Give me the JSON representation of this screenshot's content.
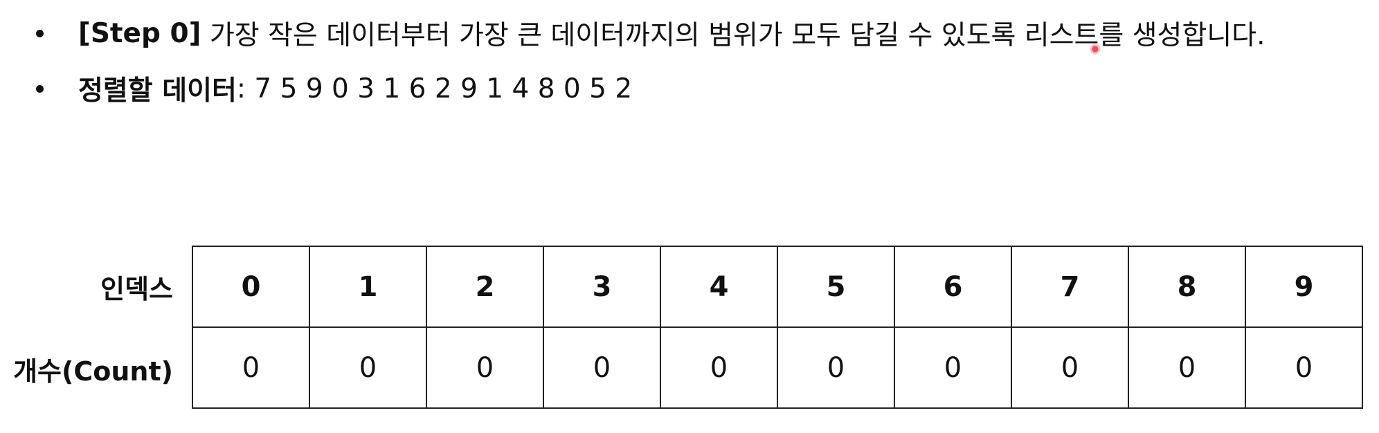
{
  "bullets": [
    {
      "bold": "[Step 0]",
      "text": "가장 작은 데이터부터 가장 큰 데이터까지의 범위가 모두 담길 수 있도록 리스트를 생성합니다."
    },
    {
      "bold": "정렬할 데이터",
      "sep": ":",
      "text": "7 5 9 0 3 1 6 2 9 1 4 8 0 5 2"
    }
  ],
  "table": {
    "row_labels": {
      "index": "인덱스",
      "count": "개수(Count)"
    },
    "indices": [
      "0",
      "1",
      "2",
      "3",
      "4",
      "5",
      "6",
      "7",
      "8",
      "9"
    ],
    "counts": [
      "0",
      "0",
      "0",
      "0",
      "0",
      "0",
      "0",
      "0",
      "0",
      "0"
    ]
  }
}
